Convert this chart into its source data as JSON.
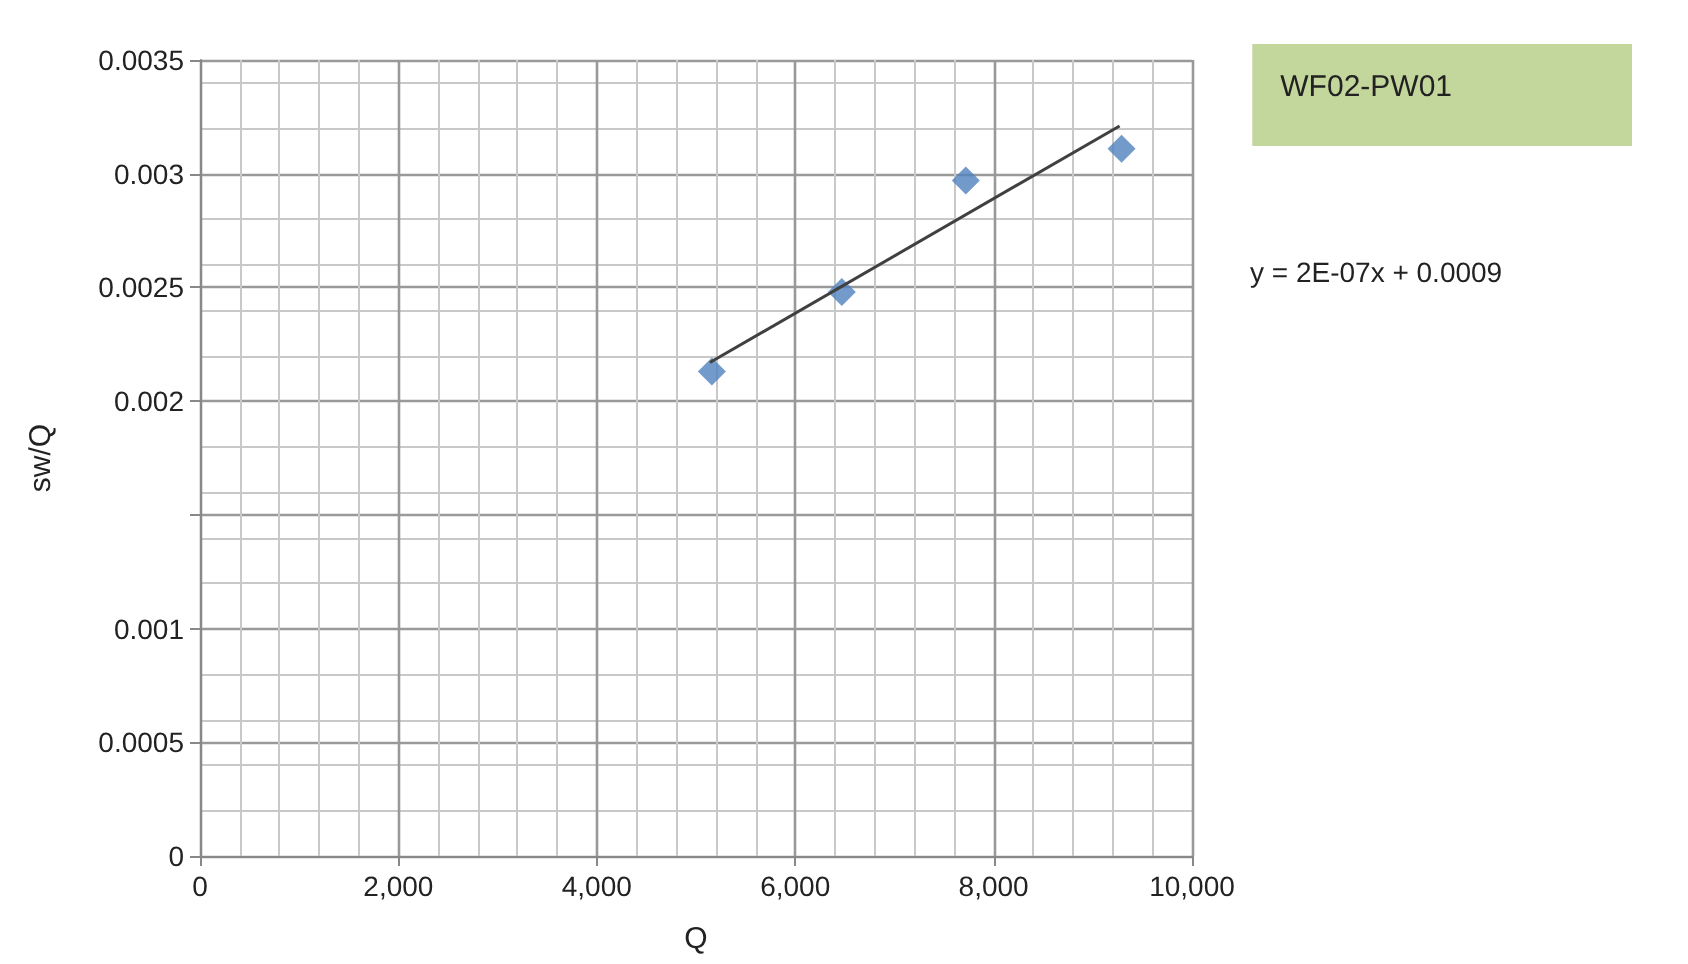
{
  "chart_data": {
    "type": "scatter",
    "title": "WF02-PW01",
    "xlabel": "Q",
    "ylabel": "sw/Q",
    "annotations": [
      "y = 2E-07x + 0.0009"
    ],
    "series": [
      {
        "color": "#4f81bd",
        "marker": "diamond",
        "x": [
          5160,
          6470,
          7720,
          9290
        ],
        "values": [
          0.00213,
          0.00248,
          0.00297,
          0.00311
        ]
      },
      {
        "type": "line",
        "color": "#404040",
        "marker": "none",
        "x": [
          5140,
          9270
        ],
        "values": [
          0.00217,
          0.00321
        ]
      }
    ],
    "xlim": [
      0,
      10000
    ],
    "xticks": [
      {
        "value": 0,
        "label": "0"
      },
      {
        "value": 2000,
        "label": "2,000"
      },
      {
        "value": 4000,
        "label": "4,000"
      },
      {
        "value": 6000,
        "label": "6,000"
      },
      {
        "value": 8000,
        "label": "8,000"
      },
      {
        "value": 10000,
        "label": "10,000"
      }
    ],
    "ylim": [
      0,
      0.0035
    ],
    "yticks": [
      0,
      0.0005,
      0.001,
      {
        "value": 0.0015,
        "label": null
      },
      0.002,
      0.0025,
      0.003,
      0.0035
    ],
    "grid": true
  }
}
